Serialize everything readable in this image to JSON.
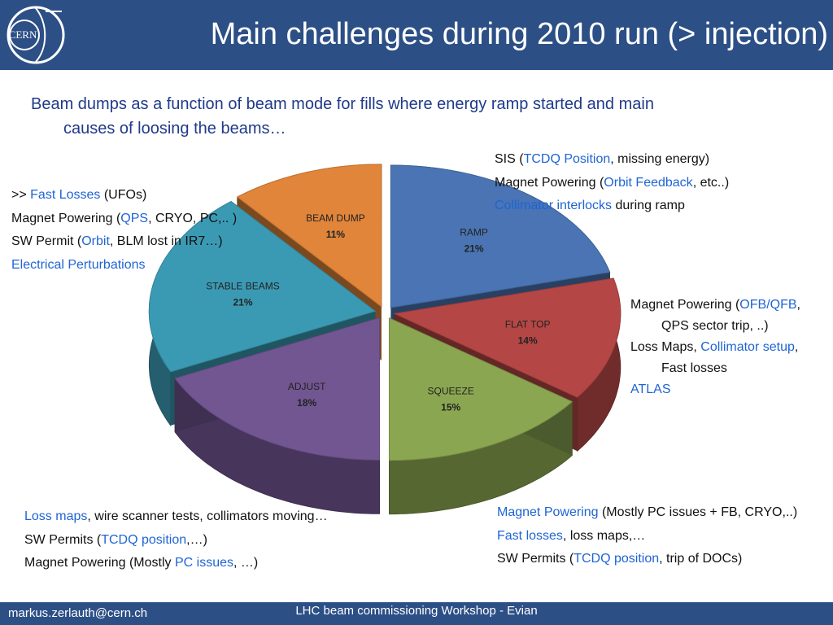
{
  "header": {
    "logo_text": "CERN",
    "title": "Main challenges during 2010 run (> injection)"
  },
  "subtitle": {
    "line1": "Beam dumps as a function of beam mode for fills where energy ramp started and main",
    "line2": "causes of loosing the beams…"
  },
  "colors": {
    "header_bg": "#2c4f86",
    "link": "#1f64d4",
    "subtitle": "#1f3a8a"
  },
  "chart_data": {
    "type": "pie",
    "title": "",
    "slices": [
      {
        "label": "RAMP",
        "value": 21,
        "percent_label": "21%",
        "color": "#4a74b3"
      },
      {
        "label": "FLAT TOP",
        "value": 14,
        "percent_label": "14%",
        "color": "#b44745"
      },
      {
        "label": "SQUEEZE",
        "value": 15,
        "percent_label": "15%",
        "color": "#8ba651"
      },
      {
        "label": "ADJUST",
        "value": 18,
        "percent_label": "18%",
        "color": "#725692"
      },
      {
        "label": "STABLE BEAMS",
        "value": 21,
        "percent_label": "21%",
        "color": "#3b9ab3"
      },
      {
        "label": "BEAM DUMP",
        "value": 11,
        "percent_label": "11%",
        "color": "#e0853a"
      }
    ]
  },
  "notes": {
    "ramp": {
      "l1_a": "SIS (",
      "l1_link": "TCDQ Position",
      "l1_b": ", missing energy)",
      "l2_a": "Magnet Powering (",
      "l2_link": "Orbit Feedback",
      "l2_b": ", etc..)",
      "l3_link": "Collimator interlocks",
      "l3_b": " during ramp"
    },
    "stable": {
      "l1_a": ">> ",
      "l1_link": "Fast Losses",
      "l1_b": " (UFOs)",
      "l2_a": "Magnet Powering (",
      "l2_link": "QPS",
      "l2_b": ", CRYO, PC,.. )",
      "l3_a": "SW Permit (",
      "l3_link": "Orbit",
      "l3_b": ", BLM lost in IR7…)",
      "l4_link": "Electrical Perturbations"
    },
    "flattop": {
      "l1_a": "Magnet Powering (",
      "l1_link": "OFB/QFB",
      "l1_b": ",",
      "l1_cont": "QPS sector trip, ..)",
      "l2_a": "Loss Maps, ",
      "l2_link": "Collimator setup",
      "l2_b": ",",
      "l2_cont": "Fast losses",
      "l3_link": "ATLAS"
    },
    "adjust": {
      "l1_link": "Loss maps",
      "l1_b": ", wire scanner tests, collimators moving…",
      "l2_a": "SW Permits (",
      "l2_link": "TCDQ position",
      "l2_b": ",…)",
      "l3_a": "Magnet Powering (Mostly ",
      "l3_link": "PC issues",
      "l3_b": ", …)"
    },
    "squeeze": {
      "l1_link": "Magnet Powering",
      "l1_b": " (Mostly PC issues + FB, CRYO,..)",
      "l2_link": "Fast losses",
      "l2_b": ", loss maps,…",
      "l3_a": "SW Permits (",
      "l3_link": "TCDQ position",
      "l3_b": ", trip of DOCs)"
    }
  },
  "footer": {
    "email": "markus.zerlauth@cern.ch",
    "event": "LHC beam commissioning Workshop - Evian"
  }
}
